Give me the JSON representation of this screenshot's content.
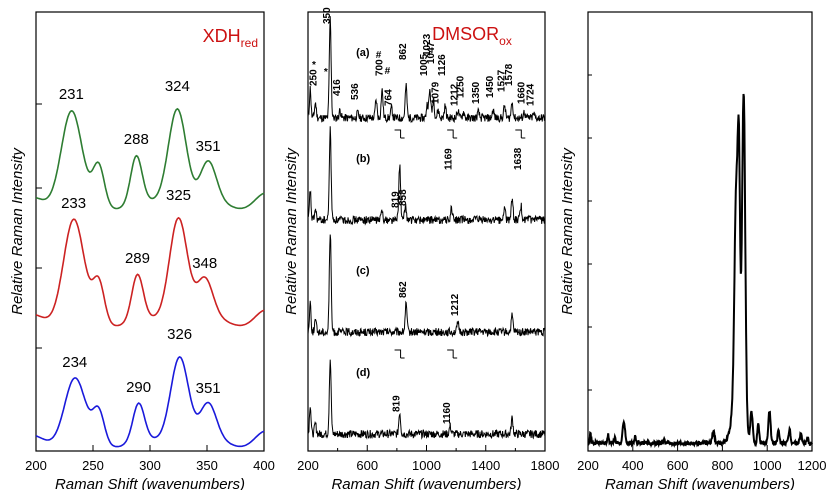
{
  "chart_data": [
    {
      "type": "line",
      "title": "XDH",
      "title_sub": "red",
      "xlabel": "Raman Shift (wavenumbers)",
      "ylabel": "Relative Raman Intensity",
      "xlim": [
        200,
        400
      ],
      "xticks": [
        "200",
        "250",
        "300",
        "350",
        "400"
      ],
      "series": [
        {
          "color": "#2e7d32",
          "peaks": [
            {
              "x": 231,
              "label": "231"
            },
            {
              "x": 288,
              "label": "288"
            },
            {
              "x": 324,
              "label": "324"
            },
            {
              "x": 351,
              "label": "351"
            }
          ]
        },
        {
          "color": "#cc2222",
          "peaks": [
            {
              "x": 233,
              "label": "233"
            },
            {
              "x": 289,
              "label": "289"
            },
            {
              "x": 325,
              "label": "325"
            },
            {
              "x": 348,
              "label": "348"
            }
          ]
        },
        {
          "color": "#1a1adb",
          "peaks": [
            {
              "x": 234,
              "label": "234"
            },
            {
              "x": 290,
              "label": "290"
            },
            {
              "x": 326,
              "label": "326"
            },
            {
              "x": 351,
              "label": "351"
            }
          ]
        }
      ]
    },
    {
      "type": "line",
      "title": "DMSOR",
      "title_sub": "ox",
      "xlabel": "Raman Shift (wavenumbers)",
      "ylabel": "Relative Raman Intensity",
      "xlim": [
        200,
        1800
      ],
      "xticks": [
        "200",
        "600",
        "1000",
        "1400",
        "1800"
      ],
      "series": [
        {
          "tag": "(a)",
          "labels": [
            "*",
            "250",
            "*",
            "350",
            "416",
            "536",
            "#",
            "700",
            "#",
            "764",
            "862",
            "1005",
            "1023",
            "1047",
            "1079",
            "1126",
            "1212",
            "1250",
            "1350",
            "1450",
            "1527",
            "1578",
            "1660",
            "1724"
          ]
        },
        {
          "tag": "(b)",
          "labels": [
            "819",
            "858",
            "1169",
            "1638"
          ]
        },
        {
          "tag": "(c)",
          "labels": [
            "862",
            "1212"
          ]
        },
        {
          "tag": "(d)",
          "labels": [
            "819",
            "1160"
          ]
        }
      ]
    },
    {
      "type": "line",
      "title": "",
      "xlabel": "Raman Shift (wavenumbers)",
      "ylabel": "Relative Raman Intensity",
      "xlim": [
        200,
        1200
      ],
      "xticks": [
        "200",
        "400",
        "600",
        "800",
        "1000",
        "1200"
      ],
      "series": [
        {
          "color": "#000000",
          "peaks": [
            {
              "x": 862
            },
            {
              "x": 895
            }
          ]
        }
      ]
    }
  ]
}
